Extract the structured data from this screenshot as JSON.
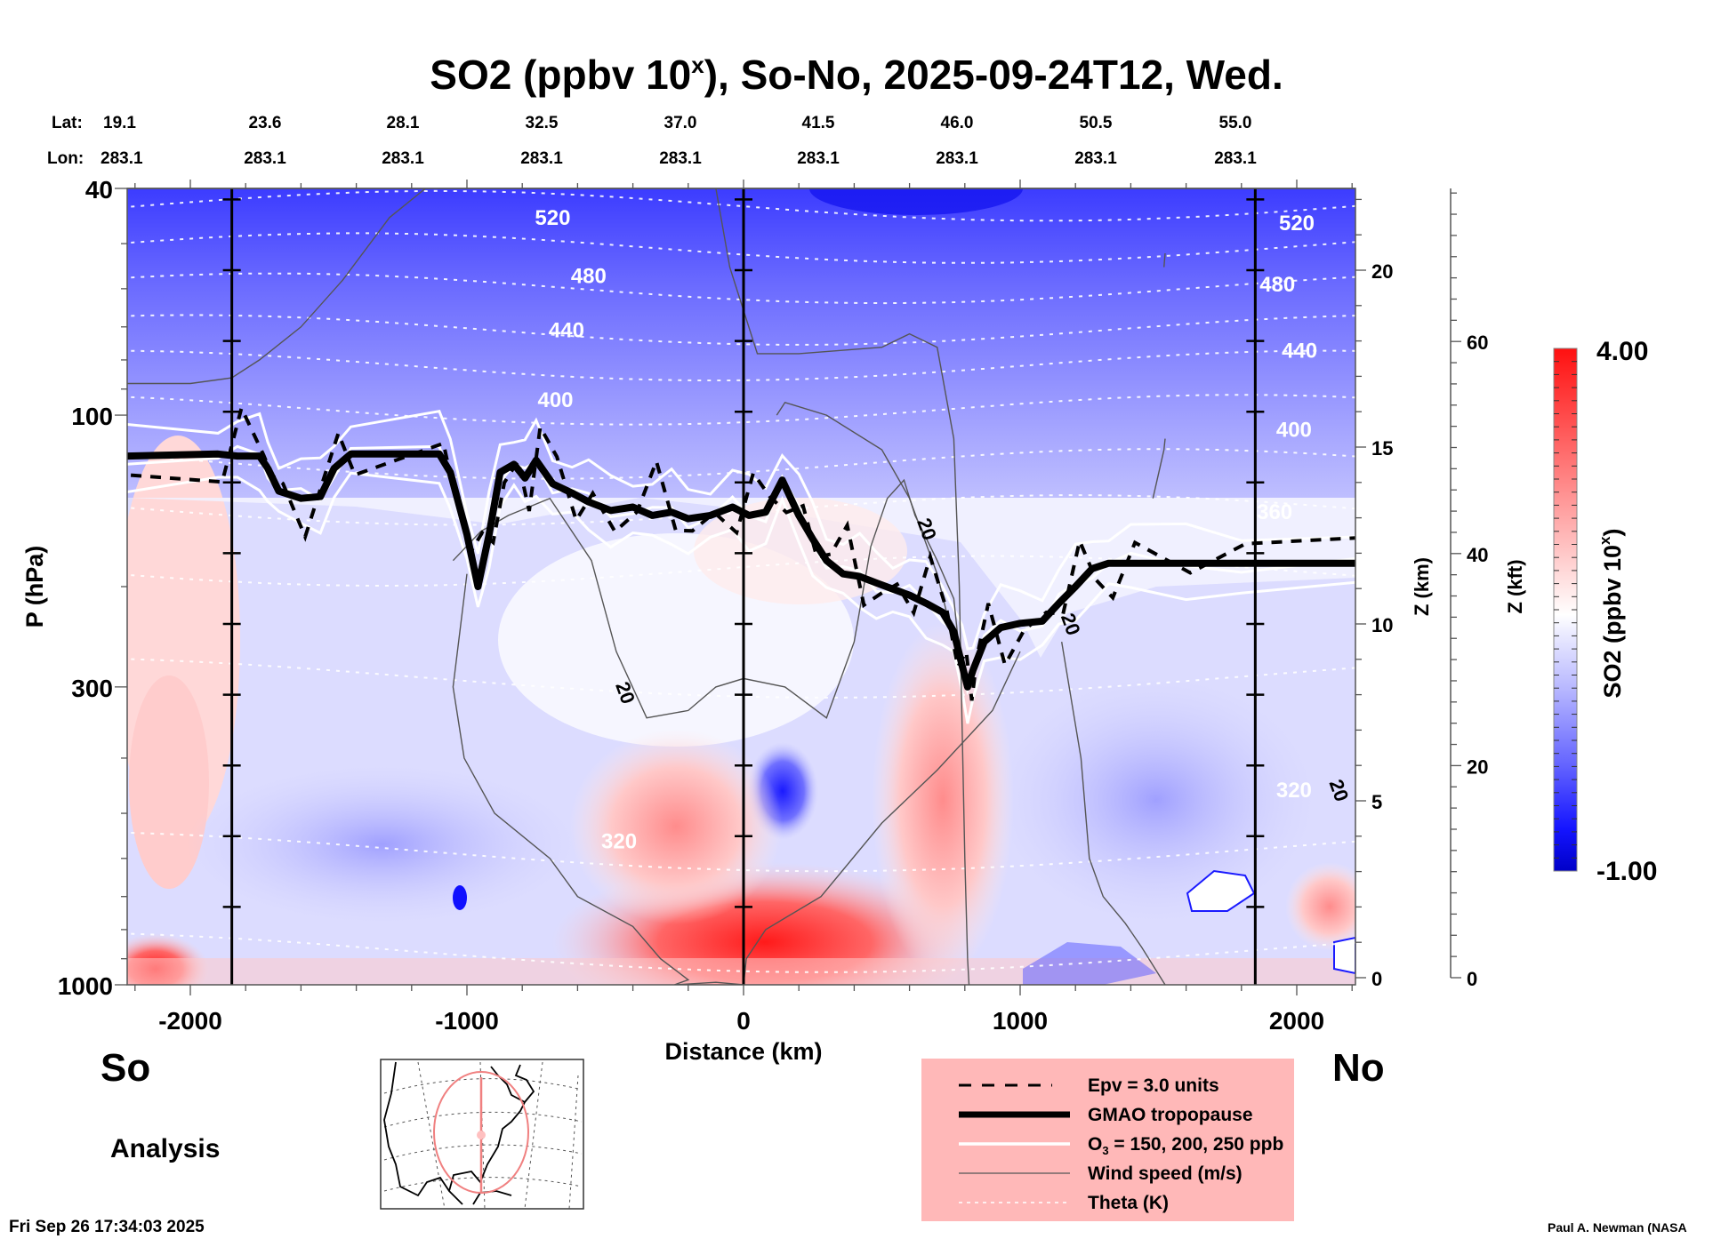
{
  "chart_data": {
    "type": "heatmap",
    "title": "SO2 (ppbv 10",
    "title_superscript": "x",
    "title_suffix": "), So-No, 2025-09-24T12, Wed.",
    "xlabel": "Distance (km)",
    "ylabel": "P (hPa)",
    "y2label": "Z (km)",
    "y3label": "Z (kft)",
    "colorbar_label": "SO2 (ppbv 10",
    "colorbar_label_sup": "x",
    "colorbar_label_suffix": ")",
    "xlim": [
      -2230,
      2215
    ],
    "ylim_hpa": [
      1000,
      40
    ],
    "y_scale": "log",
    "x_ticks": [
      {
        "value": -2000,
        "label": "-2000"
      },
      {
        "value": -1000,
        "label": "-1000"
      },
      {
        "value": 0,
        "label": "0"
      },
      {
        "value": 1000,
        "label": "1000"
      },
      {
        "value": 2000,
        "label": "2000"
      }
    ],
    "y_ticks": [
      {
        "value": 40,
        "label": "40"
      },
      {
        "value": 100,
        "label": "100"
      },
      {
        "value": 300,
        "label": "300"
      },
      {
        "value": 1000,
        "label": "1000"
      }
    ],
    "z_km_ticks": [
      {
        "value": 0,
        "label": "0"
      },
      {
        "value": 5,
        "label": "5"
      },
      {
        "value": 10,
        "label": "10"
      },
      {
        "value": 15,
        "label": "15"
      },
      {
        "value": 20,
        "label": "20"
      }
    ],
    "z_kft_ticks": [
      {
        "value": 0,
        "label": "0"
      },
      {
        "value": 20,
        "label": "20"
      },
      {
        "value": 40,
        "label": "40"
      },
      {
        "value": 60,
        "label": "60"
      }
    ],
    "colorbar": {
      "min": -1.0,
      "max": 4.0,
      "min_label": "-1.00",
      "max_label": "4.00",
      "low_color": "#0000cc",
      "mid_color": "#ffffff",
      "high_color": "#ff0000",
      "levels": 40
    },
    "lat_label": "Lat:",
    "lon_label": "Lon:",
    "lat": [
      "19.1",
      "23.6",
      "28.1",
      "32.5",
      "37.0",
      "41.5",
      "46.0",
      "50.5",
      "55.0"
    ],
    "lon": [
      "283.1",
      "283.1",
      "283.1",
      "283.1",
      "283.1",
      "283.1",
      "283.1",
      "283.1",
      "283.1"
    ],
    "vertical_reference_lines_km": [
      -1850,
      0,
      1850
    ],
    "theta_labels": [
      {
        "value": "520",
        "x_km": -690,
        "p_hpa": 45
      },
      {
        "value": "480",
        "x_km": -560,
        "p_hpa": 57
      },
      {
        "value": "440",
        "x_km": -640,
        "p_hpa": 71
      },
      {
        "value": "400",
        "x_km": -680,
        "p_hpa": 94
      },
      {
        "value": "520",
        "x_km": 2000,
        "p_hpa": 46
      },
      {
        "value": "480",
        "x_km": 1930,
        "p_hpa": 59
      },
      {
        "value": "440",
        "x_km": 2010,
        "p_hpa": 77
      },
      {
        "value": "400",
        "x_km": 1990,
        "p_hpa": 106
      },
      {
        "value": "360",
        "x_km": 1920,
        "p_hpa": 148
      },
      {
        "value": "320",
        "x_km": 1990,
        "p_hpa": 455
      },
      {
        "value": "320",
        "x_km": -450,
        "p_hpa": 560
      }
    ],
    "wind_labels": [
      {
        "value": "20",
        "x_km": 640,
        "p_hpa": 160
      },
      {
        "value": "20",
        "x_km": -450,
        "p_hpa": 310
      },
      {
        "value": "20",
        "x_km": 1160,
        "p_hpa": 235
      },
      {
        "value": "20",
        "x_km": 2130,
        "p_hpa": 460
      }
    ],
    "theta_levels_hpa": [
      43,
      51,
      60,
      71,
      82,
      98,
      122,
      147,
      188,
      290,
      585,
      880
    ],
    "tropopause_hpa": [
      [
        -2230,
        118
      ],
      [
        -1900,
        117
      ],
      [
        -1830,
        118
      ],
      [
        -1750,
        118
      ],
      [
        -1720,
        124
      ],
      [
        -1680,
        136
      ],
      [
        -1600,
        140
      ],
      [
        -1530,
        139
      ],
      [
        -1480,
        124
      ],
      [
        -1420,
        117
      ],
      [
        -1100,
        117
      ],
      [
        -1060,
        126
      ],
      [
        -1000,
        162
      ],
      [
        -960,
        200
      ],
      [
        -920,
        162
      ],
      [
        -880,
        126
      ],
      [
        -830,
        122
      ],
      [
        -790,
        129
      ],
      [
        -750,
        120
      ],
      [
        -690,
        132
      ],
      [
        -620,
        137
      ],
      [
        -560,
        142
      ],
      [
        -480,
        147
      ],
      [
        -400,
        145
      ],
      [
        -330,
        150
      ],
      [
        -260,
        148
      ],
      [
        -200,
        152
      ],
      [
        -120,
        150
      ],
      [
        -40,
        145
      ],
      [
        20,
        150
      ],
      [
        80,
        148
      ],
      [
        140,
        130
      ],
      [
        200,
        150
      ],
      [
        250,
        165
      ],
      [
        300,
        180
      ],
      [
        360,
        190
      ],
      [
        420,
        192
      ],
      [
        480,
        197
      ],
      [
        540,
        202
      ],
      [
        600,
        207
      ],
      [
        660,
        214
      ],
      [
        720,
        222
      ],
      [
        760,
        240
      ],
      [
        790,
        275
      ],
      [
        810,
        300
      ],
      [
        830,
        280
      ],
      [
        870,
        250
      ],
      [
        930,
        236
      ],
      [
        1000,
        232
      ],
      [
        1080,
        230
      ],
      [
        1140,
        214
      ],
      [
        1200,
        200
      ],
      [
        1260,
        186
      ],
      [
        1320,
        182
      ],
      [
        1400,
        182
      ],
      [
        1600,
        182
      ],
      [
        1800,
        182
      ],
      [
        2215,
        182
      ]
    ],
    "legend": [
      {
        "style": "dashed-black",
        "label": "Epv = 3.0 units"
      },
      {
        "style": "thick-black",
        "label": "GMAO tropopause"
      },
      {
        "style": "white",
        "label": "O",
        "label_sub": "3",
        "label_suffix": " = 150, 200, 250 ppb"
      },
      {
        "style": "thin-gray",
        "label": "Wind speed (m/s)"
      },
      {
        "style": "dotted-white",
        "label": "Theta (K)"
      }
    ],
    "legend_bg_color": "#ffb8b8"
  },
  "labels": {
    "south": "So",
    "north": "No",
    "analysis": "Analysis",
    "timestamp": "Fri Sep 26 17:34:03 2025",
    "credit": "Paul A. Newman (NASA"
  },
  "map_inset": {
    "description": "North America polar-stereographic inset with cross-section path",
    "path_color": "#f08080"
  }
}
